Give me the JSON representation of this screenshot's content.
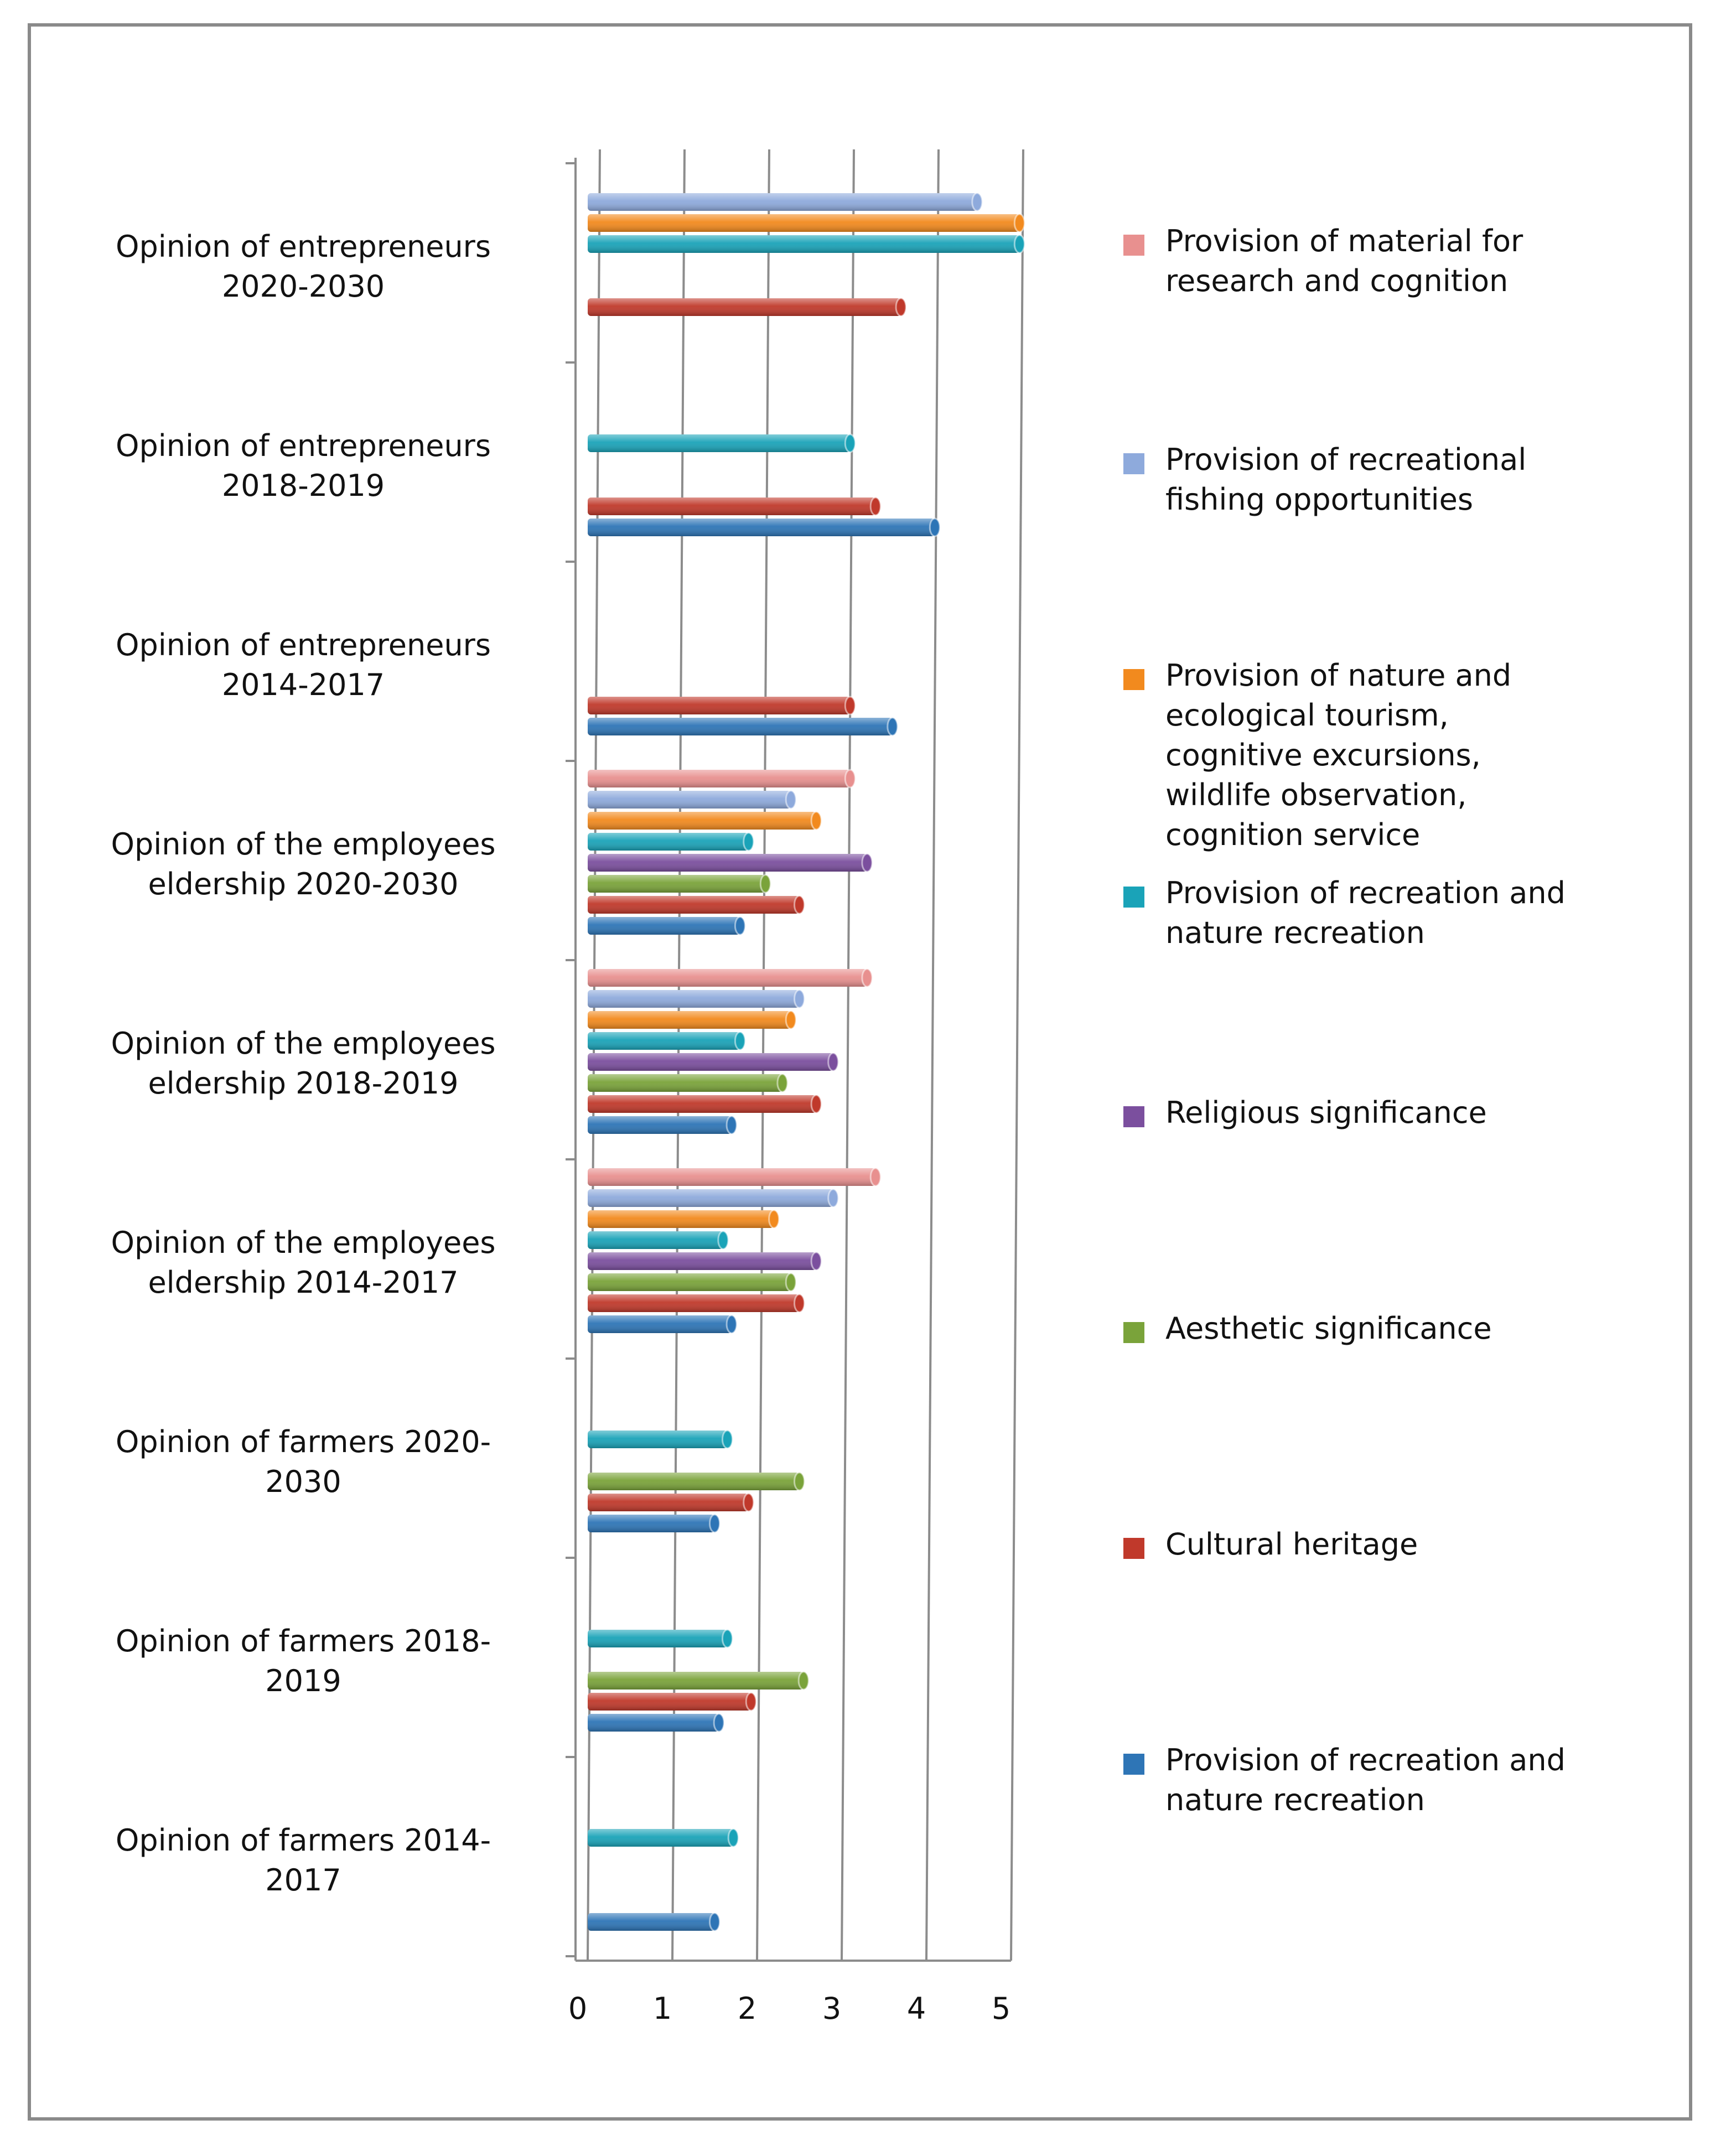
{
  "chart_data": {
    "type": "bar",
    "orientation": "horizontal",
    "xlim": [
      0,
      5
    ],
    "x_ticks": [
      "0",
      "1",
      "2",
      "3",
      "4",
      "5"
    ],
    "grid": true,
    "legend_position": "right",
    "categories": [
      "Opinion of entrepreneurs 2020-2030",
      "Opinion of entrepreneurs 2018-2019",
      "Opinion of entrepreneurs 2014-2017",
      "Opinion of the employees eldership 2020-2030",
      "Opinion of the employees eldership 2018-2019",
      "Opinion of the employees eldership 2014-2017",
      "Opinion of farmers 2020-2030",
      "Opinion of farmers 2018-2019",
      "Opinion of farmers 2014-2017"
    ],
    "category_labels": [
      "Opinion of entrepreneurs\n2020-2030",
      "Opinion of entrepreneurs\n2018-2019",
      "Opinion of entrepreneurs\n2014-2017",
      "Opinion of the employees\neldership 2020-2030",
      "Opinion of the employees\neldership 2018-2019",
      "Opinion of the employees\neldership 2014-2017",
      "Opinion of farmers 2020-\n2030",
      "Opinion of farmers 2018-\n2019",
      "Opinion of farmers 2014-\n2017"
    ],
    "series": [
      {
        "name": "Provision of recreation and nature recreation",
        "label": "Provision of recreation and\nnature recreation",
        "color": "#2e75b6",
        "values": [
          null,
          4.1,
          3.6,
          1.8,
          1.7,
          1.7,
          1.5,
          1.55,
          1.5
        ]
      },
      {
        "name": "Cultural heritage",
        "label": "Cultural heritage",
        "color": "#c0392b",
        "values": [
          3.7,
          3.4,
          3.1,
          2.5,
          2.7,
          2.5,
          1.9,
          1.93,
          null
        ]
      },
      {
        "name": "Aesthetic significance",
        "label": "Aesthetic significance",
        "color": "#7aa33a",
        "values": [
          null,
          null,
          null,
          2.1,
          2.3,
          2.4,
          2.5,
          2.55,
          null
        ]
      },
      {
        "name": "Religious significance",
        "label": "Religious significance",
        "color": "#7b4f9e",
        "values": [
          null,
          null,
          null,
          3.3,
          2.9,
          2.7,
          null,
          null,
          null
        ]
      },
      {
        "name": "Provision of recreation and nature recreation",
        "label": "Provision of recreation and\nnature recreation",
        "color": "#1aa3b8",
        "values": [
          5.1,
          3.1,
          null,
          1.9,
          1.8,
          1.6,
          1.65,
          1.65,
          1.72
        ]
      },
      {
        "name": "Provision of nature and ecological tourism, cognitive excursions, wildlife observation, cognition service",
        "label": "Provision of nature and\necological tourism,\ncognitive excursions,\nwildlife observation,\ncognition service",
        "color": "#f28a1e",
        "values": [
          5.1,
          null,
          null,
          2.7,
          2.4,
          2.2,
          null,
          null,
          null
        ]
      },
      {
        "name": "Provision of recreational fishing opportunities",
        "label": "Provision of recreational\nfishing opportunities",
        "color": "#8eaadc",
        "values": [
          4.6,
          null,
          null,
          2.4,
          2.5,
          2.9,
          null,
          null,
          null
        ]
      },
      {
        "name": "Provision of material for research and cognition",
        "label": "Provision of material for\nresearch and cognition",
        "color": "#e8908f",
        "values": [
          null,
          null,
          null,
          3.1,
          3.3,
          3.4,
          null,
          null,
          null
        ]
      }
    ]
  }
}
